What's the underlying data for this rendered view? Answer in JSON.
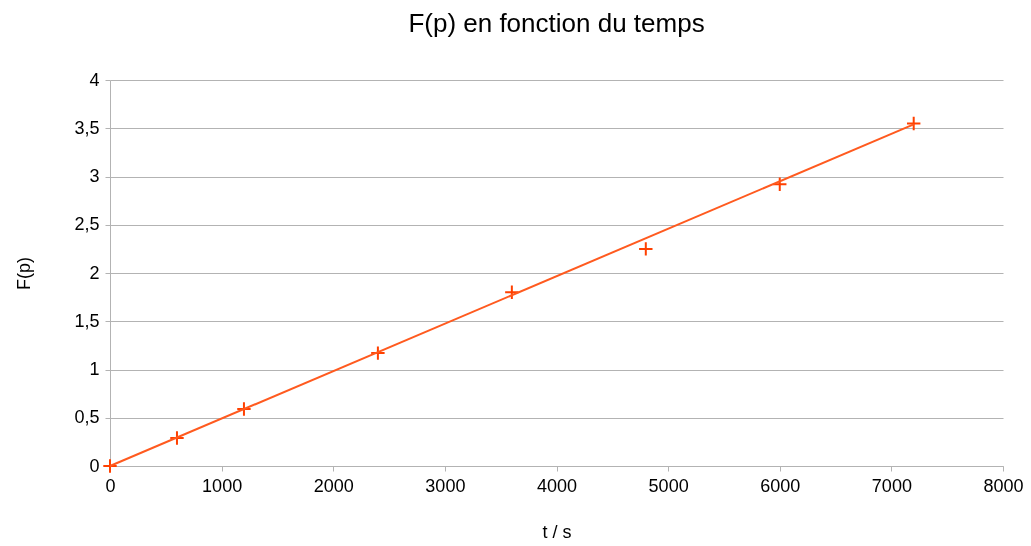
{
  "chart_data": {
    "type": "scatter",
    "title": "F(p) en fonction du temps",
    "xlabel": "t / s",
    "ylabel": "F(p)",
    "x": [
      0,
      600,
      1200,
      2400,
      3600,
      4800,
      6000,
      7200
    ],
    "series": [
      {
        "type": "scatter",
        "color": "#ff4000",
        "values": [
          0,
          0.29,
          0.59,
          1.17,
          1.8,
          2.25,
          2.92,
          3.55
        ],
        "marker": "cross"
      },
      {
        "type": "line",
        "color": "#ff5a1f",
        "x": [
          0,
          7200
        ],
        "values": [
          0,
          3.54
        ],
        "marker": "none"
      }
    ],
    "xlim": [
      0,
      8000
    ],
    "xticks": [
      0,
      1000,
      2000,
      3000,
      4000,
      5000,
      6000,
      7000,
      8000
    ],
    "ylim": [
      0,
      4
    ],
    "yticks": [
      0,
      {
        "value": 0.5,
        "label": "0,5"
      },
      1,
      {
        "value": 1.5,
        "label": "1,5"
      },
      2,
      {
        "value": 2.5,
        "label": "2,5"
      },
      3,
      {
        "value": 3.5,
        "label": "3,5"
      },
      4
    ],
    "grid": "y"
  }
}
